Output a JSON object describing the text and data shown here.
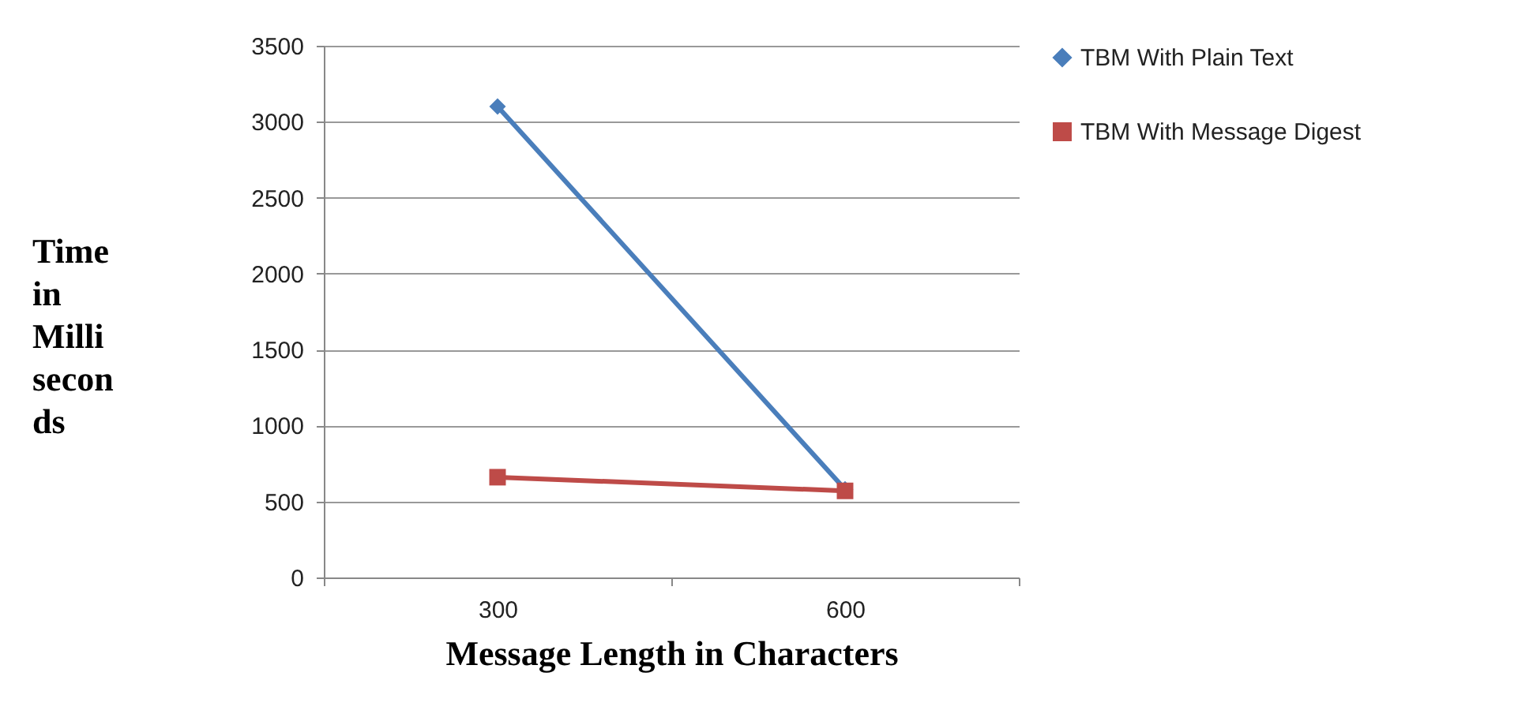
{
  "chart_data": {
    "type": "line",
    "xlabel": "Message Length in Characters",
    "ylabel": "Time in Milli seconds",
    "categories": [
      "300",
      "600"
    ],
    "series": [
      {
        "name": "TBM With Plain Text",
        "color": "#4a7ebb",
        "marker": "diamond",
        "values": [
          3100,
          580
        ]
      },
      {
        "name": "TBM With Message Digest",
        "color": "#be4b48",
        "marker": "square",
        "values": [
          660,
          570
        ]
      }
    ],
    "ylim": [
      0,
      3500
    ],
    "yticks": [
      0,
      500,
      1000,
      1500,
      2000,
      2500,
      3000,
      3500
    ],
    "grid": "y",
    "legend": "right",
    "line_style": "solid"
  }
}
